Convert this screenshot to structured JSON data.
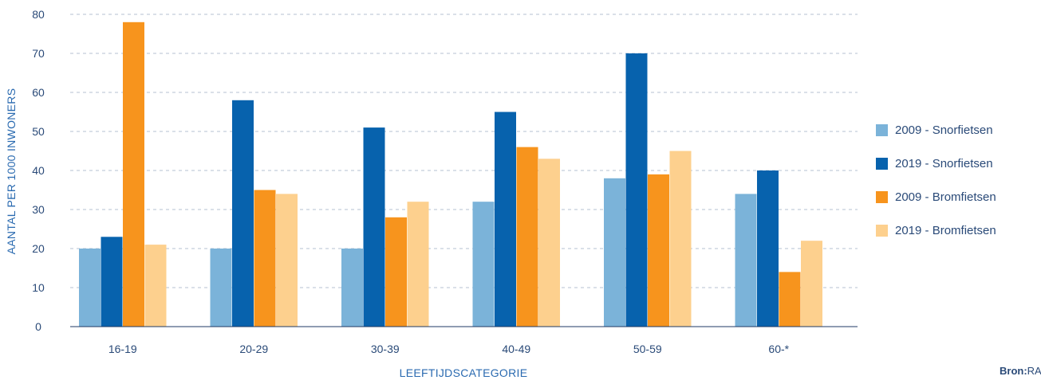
{
  "chart_data": {
    "type": "bar",
    "title": "",
    "xlabel": "LEEFTIJDSCATEGORIE",
    "ylabel": "AANTAL PER 1000 INWONERS",
    "ylim": [
      0,
      80
    ],
    "yticks": [
      0,
      10,
      20,
      30,
      40,
      50,
      60,
      70,
      80
    ],
    "grid": true,
    "legend_position": "right",
    "categories": [
      "16-19",
      "20-29",
      "30-39",
      "40-49",
      "50-59",
      "60-*"
    ],
    "series": [
      {
        "name": "2009 - Snorfietsen",
        "color": "#7bb3d9",
        "values": [
          20,
          20,
          20,
          32,
          38,
          34
        ]
      },
      {
        "name": "2019 - Snorfietsen",
        "color": "#0762ad",
        "values": [
          23,
          58,
          51,
          55,
          70,
          40
        ]
      },
      {
        "name": "2009 - Bromfietsen",
        "color": "#f7941d",
        "values": [
          78,
          35,
          28,
          46,
          39,
          14
        ]
      },
      {
        "name": "2019 - Bromfietsen",
        "color": "#fdd08e",
        "values": [
          21,
          34,
          32,
          43,
          45,
          22
        ]
      }
    ]
  },
  "source": {
    "label": "Bron:",
    "text": "RA"
  }
}
